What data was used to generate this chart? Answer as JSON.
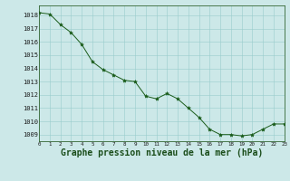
{
  "x": [
    0,
    1,
    2,
    3,
    4,
    5,
    6,
    7,
    8,
    9,
    10,
    11,
    12,
    13,
    14,
    15,
    16,
    17,
    18,
    19,
    20,
    21,
    22,
    23
  ],
  "y": [
    1018.2,
    1018.1,
    1017.3,
    1016.7,
    1015.8,
    1014.5,
    1013.9,
    1013.5,
    1013.1,
    1013.0,
    1011.9,
    1011.7,
    1012.1,
    1011.7,
    1011.0,
    1010.3,
    1009.4,
    1009.0,
    1009.0,
    1008.9,
    1009.0,
    1009.4,
    1009.8,
    1009.8
  ],
  "line_color": "#1a5c1a",
  "marker": "*",
  "marker_color": "#1a5c1a",
  "bg_color": "#cce8e8",
  "grid_color": "#99cccc",
  "xlabel": "Graphe pression niveau de la mer (hPa)",
  "xlabel_fontsize": 7,
  "ylim_min": 1008.5,
  "ylim_max": 1018.75,
  "yticks": [
    1009,
    1010,
    1011,
    1012,
    1013,
    1014,
    1015,
    1016,
    1017,
    1018
  ],
  "xtick_labels": [
    "0",
    "1",
    "2",
    "3",
    "4",
    "5",
    "6",
    "7",
    "8",
    "9",
    "10",
    "11",
    "12",
    "13",
    "14",
    "15",
    "16",
    "17",
    "18",
    "19",
    "20",
    "21",
    "22",
    "23"
  ]
}
